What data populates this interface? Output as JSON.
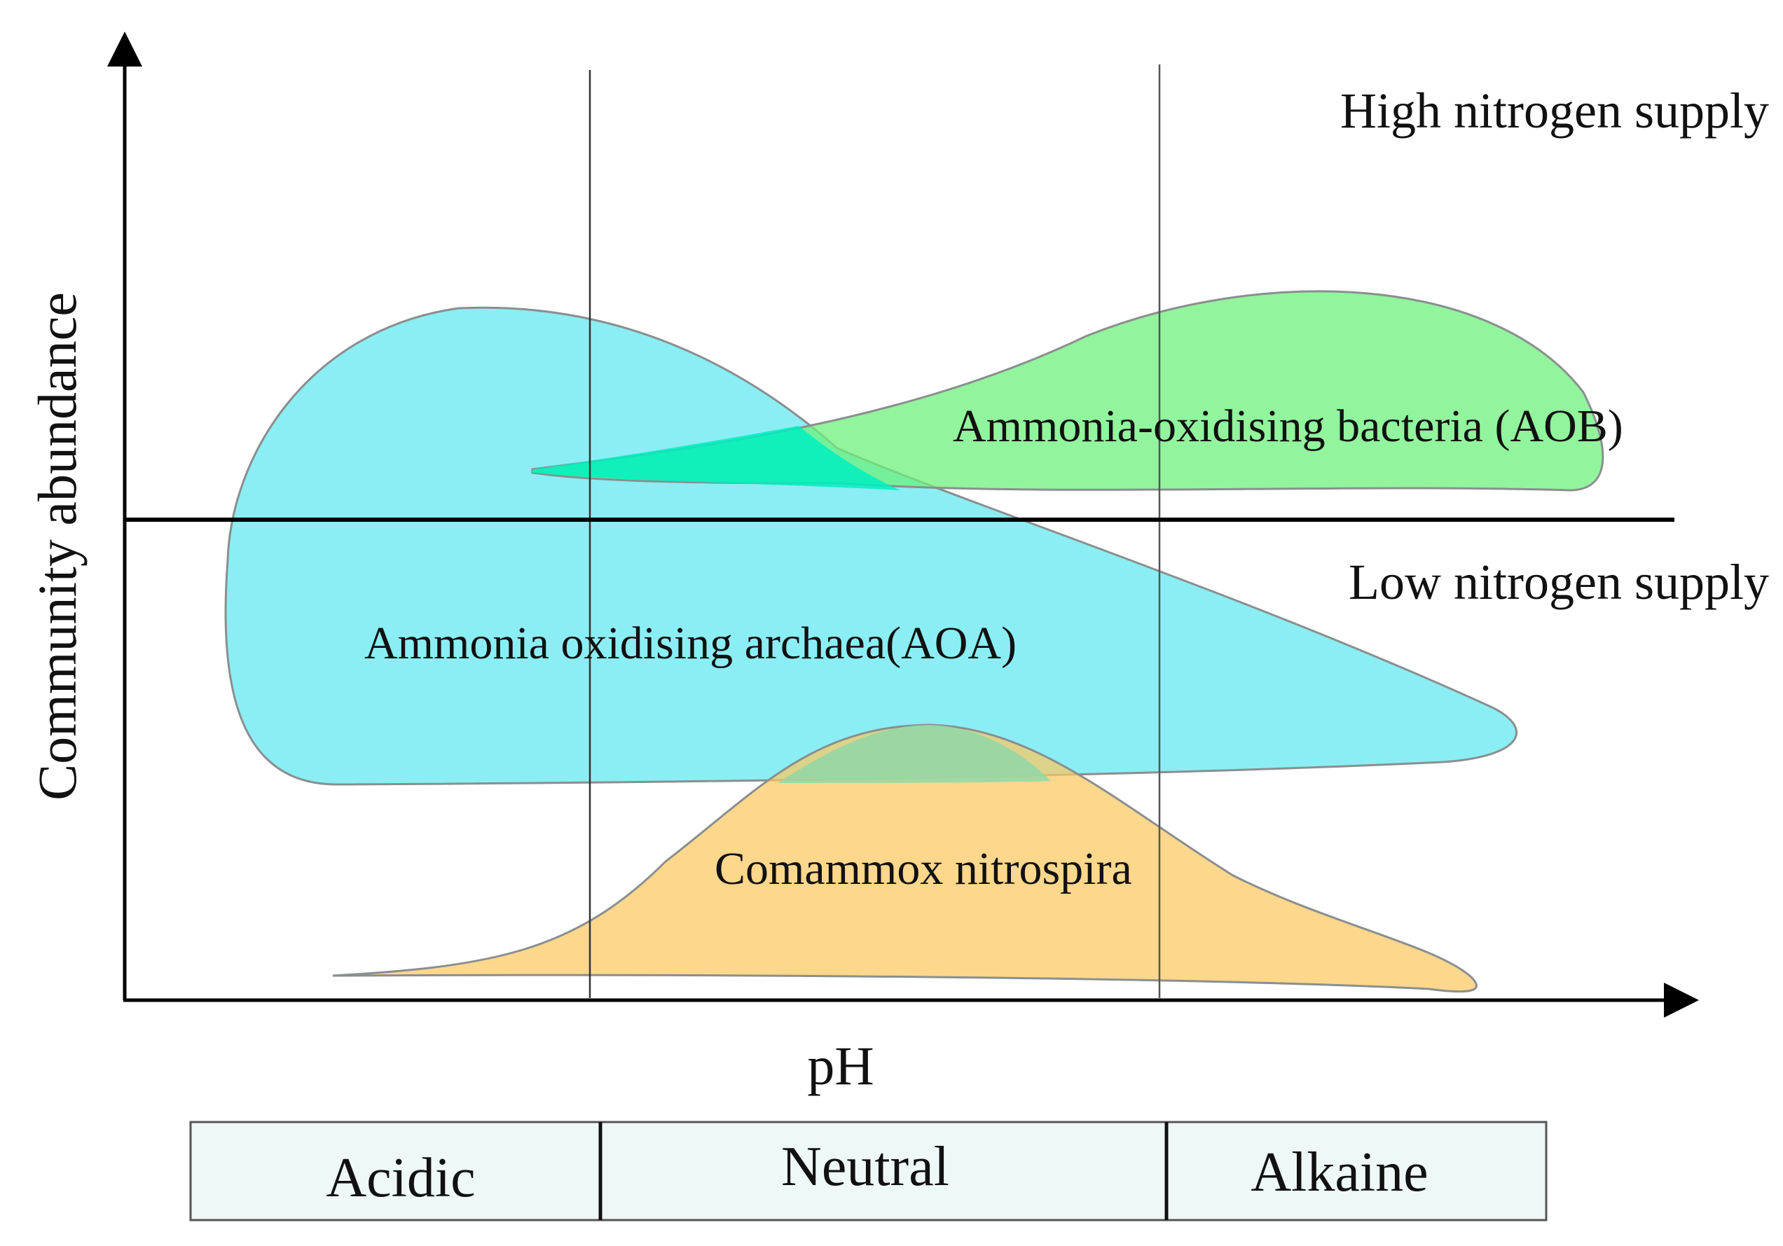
{
  "diagram": {
    "y_axis_label": "Community abundance",
    "x_axis_label": "pH",
    "regions": {
      "high": "High nitrogen supply",
      "low": "Low nitrogen supply"
    },
    "groups": {
      "aoa": {
        "label": "Ammonia oxidising archaea(AOA)",
        "color": "#5ee8f0"
      },
      "aob": {
        "label": "Ammonia-oxidising bacteria (AOB)",
        "color": "#6ef07c"
      },
      "comammox": {
        "label": "Comammox nitrospira",
        "color": "#fcc760"
      },
      "overlap_aoa_aob_color": "#00f0c0",
      "overlap_aoa_comammox_color": "#90d8a8"
    },
    "ph_bands": [
      "Acidic",
      "Neutral",
      "Alkaine"
    ],
    "band_fill": "#eef8f6"
  }
}
